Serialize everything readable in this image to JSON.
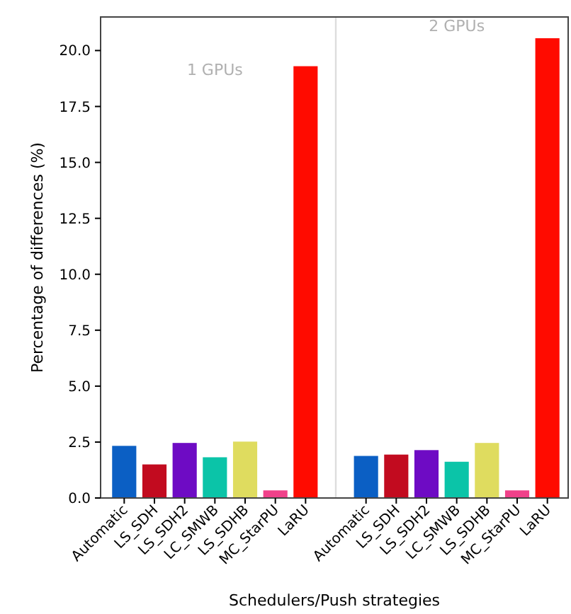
{
  "chart_data": {
    "type": "bar",
    "xlabel": "Schedulers/Push strategies",
    "ylabel": "Percentage of differences (%)",
    "categories": [
      "Automatic",
      "LS_SDH",
      "LS_SDH2",
      "LC_SMWB",
      "LS_SDHB",
      "MC_StarPU",
      "LaRU",
      null,
      "Automatic",
      "LS_SDH",
      "LS_SDH2",
      "LC_SMWB",
      "LS_SDHB",
      "MC_StarPU",
      "LaRU"
    ],
    "values": [
      2.33,
      1.5,
      2.46,
      1.82,
      2.52,
      0.34,
      19.3,
      null,
      1.88,
      1.94,
      2.14,
      1.62,
      2.46,
      0.34,
      20.55
    ],
    "colors": [
      "#0b5fc4",
      "#c20b1f",
      "#6e0bc4",
      "#0bc4a8",
      "#dfdc5f",
      "#f0418a",
      "#ff0b00",
      null,
      "#0b5fc4",
      "#c20b1f",
      "#6e0bc4",
      "#0bc4a8",
      "#dfdc5f",
      "#f0418a",
      "#ff0b00"
    ],
    "ylim": [
      0,
      21.5
    ],
    "yticks": [
      {
        "value": 0,
        "label": "0.0"
      },
      {
        "value": 2.5,
        "label": "2.5"
      },
      {
        "value": 5,
        "label": "5.0"
      },
      {
        "value": 7.5,
        "label": "7.5"
      },
      {
        "value": 10,
        "label": "10.0"
      },
      {
        "value": 12.5,
        "label": "12.5"
      },
      {
        "value": 15,
        "label": "15.0"
      },
      {
        "value": 17.5,
        "label": "17.5"
      },
      {
        "value": 20,
        "label": "20.0"
      }
    ],
    "annotations": [
      "1 GPUs",
      "2 GPUs"
    ]
  }
}
